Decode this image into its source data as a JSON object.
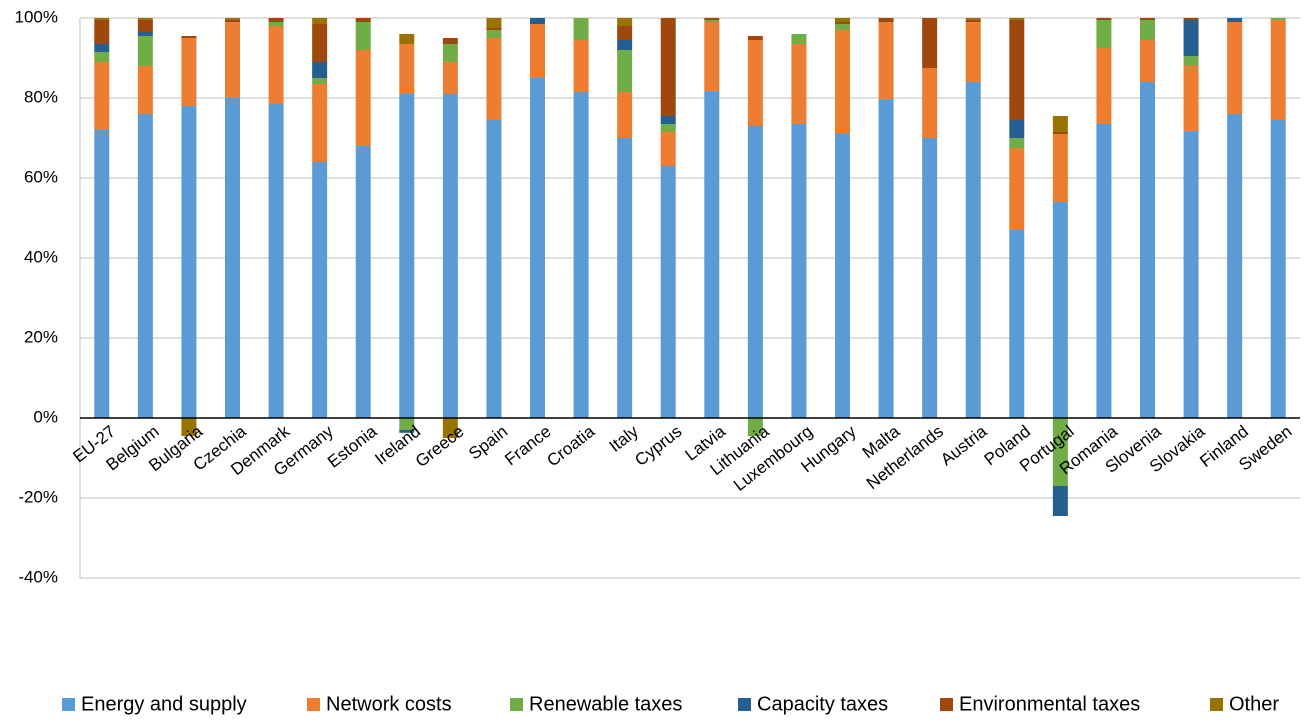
{
  "chart_data": {
    "type": "stacked_bar",
    "categories": [
      "EU-27",
      "Belgium",
      "Bulgaria",
      "Czechia",
      "Denmark",
      "Germany",
      "Estonia",
      "Ireland",
      "Greece",
      "Spain",
      "France",
      "Croatia",
      "Italy",
      "Cyprus",
      "Latvia",
      "Lithuania",
      "Luxembourg",
      "Hungary",
      "Malta",
      "Netherlands",
      "Austria",
      "Poland",
      "Portugal",
      "Romania",
      "Slovenia",
      "Slovakia",
      "Finland",
      "Sweden"
    ],
    "series": [
      {
        "name": "Energy and supply",
        "color": "#5b9bd5",
        "values": [
          72,
          76,
          78,
          80,
          78.5,
          64,
          68,
          81,
          81,
          74.5,
          85,
          81.5,
          70,
          63,
          81.5,
          73,
          73.5,
          71,
          79.5,
          70,
          84,
          47,
          54,
          73.5,
          84,
          71.5,
          76,
          74.5
        ]
      },
      {
        "name": "Network costs",
        "color": "#ed7d31",
        "values": [
          17,
          12,
          17,
          19,
          19.5,
          19.5,
          24,
          12.5,
          8,
          20.5,
          13.5,
          13,
          11.5,
          8.5,
          17.5,
          21.5,
          20,
          26,
          19.5,
          17.5,
          15,
          20.5,
          17,
          19,
          10.5,
          16.5,
          23,
          25
        ]
      },
      {
        "name": "Renewable taxes",
        "color": "#70ad47",
        "values": [
          2.5,
          7.5,
          0,
          0,
          1,
          1.5,
          7,
          -3,
          4.5,
          2,
          0,
          5.5,
          10.5,
          2,
          0.5,
          -4.5,
          2.5,
          1.5,
          0,
          0,
          0,
          2.5,
          -17,
          7,
          5,
          2.5,
          0,
          0.5
        ]
      },
      {
        "name": "Capacity taxes",
        "color": "#255e91",
        "values": [
          2,
          1,
          0,
          0,
          0,
          4,
          0,
          -0.7,
          0,
          0,
          1.5,
          0,
          2.5,
          2,
          0,
          0,
          0,
          0,
          0,
          0,
          0,
          4.5,
          -7.5,
          0,
          0,
          9,
          1,
          0
        ]
      },
      {
        "name": "Environmental taxes",
        "color": "#9e480e",
        "values": [
          6,
          3,
          0.5,
          0.7,
          1,
          9.5,
          1,
          0,
          1.5,
          0.5,
          0,
          0,
          3.5,
          24.5,
          0.5,
          1,
          0,
          0.5,
          1,
          12.5,
          0.7,
          25,
          0.5,
          0.5,
          0.5,
          0.5,
          0,
          0
        ]
      },
      {
        "name": "Other",
        "color": "#997300",
        "values": [
          0.5,
          0.5,
          -4.5,
          0.3,
          0,
          1.5,
          0,
          2.5,
          -5,
          2.5,
          0,
          0,
          2,
          0,
          0,
          0,
          0,
          1,
          0,
          0,
          0.3,
          0.5,
          4,
          0,
          0,
          0,
          0,
          0
        ]
      }
    ],
    "ylim": [
      -40,
      100
    ],
    "yticks": [
      {
        "value": -40,
        "label": "-40%"
      },
      {
        "value": -20,
        "label": "-20%"
      },
      {
        "value": 0,
        "label": "0%"
      },
      {
        "value": 20,
        "label": "20%"
      },
      {
        "value": 40,
        "label": "40%"
      },
      {
        "value": 60,
        "label": "60%"
      },
      {
        "value": 80,
        "label": "80%"
      },
      {
        "value": 100,
        "label": "100%"
      }
    ],
    "grid": true,
    "legend": "bottom"
  }
}
